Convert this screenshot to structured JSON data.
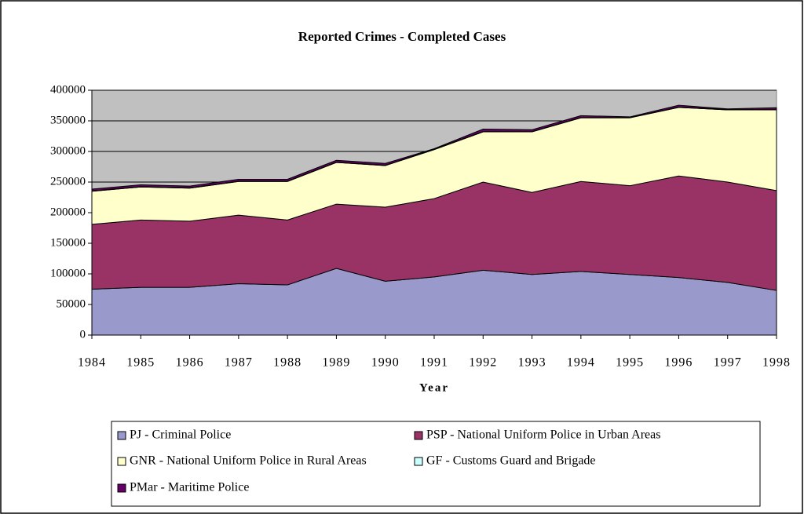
{
  "chart_data": {
    "type": "area",
    "stacked": true,
    "title": "Reported Crimes - Completed Cases",
    "x_label": "Year",
    "categories": [
      "1984",
      "1985",
      "1986",
      "1987",
      "1988",
      "1989",
      "1990",
      "1991",
      "1992",
      "1993",
      "1994",
      "1995",
      "1996",
      "1997",
      "1998"
    ],
    "series": [
      {
        "name": "PJ - Criminal Police",
        "color": "#9999cc",
        "values": [
          75000,
          78000,
          78000,
          84000,
          82000,
          109000,
          88000,
          95000,
          106000,
          99000,
          104000,
          99000,
          94000,
          86000,
          73000
        ]
      },
      {
        "name": "PSP - National Uniform Police in Urban Areas",
        "color": "#993366",
        "values": [
          106000,
          110000,
          108000,
          112000,
          106000,
          105000,
          121000,
          128000,
          144000,
          134000,
          147000,
          145000,
          166000,
          164000,
          163000
        ]
      },
      {
        "name": "GNR - National Uniform Police in Rural Areas",
        "color": "#ffffcc",
        "values": [
          54000,
          54000,
          54000,
          55000,
          63000,
          68000,
          68000,
          80000,
          82000,
          99000,
          104000,
          111000,
          112000,
          118000,
          132000
        ]
      },
      {
        "name": "GF - Customs Guard and Brigade",
        "color": "#ccffff",
        "values": [
          500,
          500,
          500,
          500,
          500,
          500,
          500,
          500,
          500,
          500,
          500,
          500,
          500,
          500,
          500
        ]
      },
      {
        "name": "PMar - Maritime Police",
        "color": "#660066",
        "values": [
          3000,
          3000,
          3000,
          3000,
          3000,
          3000,
          3000,
          1000,
          4000,
          3000,
          3000,
          1000,
          3000,
          1000,
          3000
        ]
      }
    ],
    "ylim": [
      0,
      400000
    ],
    "yticks": [
      0,
      50000,
      100000,
      150000,
      200000,
      250000,
      300000,
      350000,
      400000
    ],
    "grid": true,
    "plot_background": "#c0c0c0"
  }
}
